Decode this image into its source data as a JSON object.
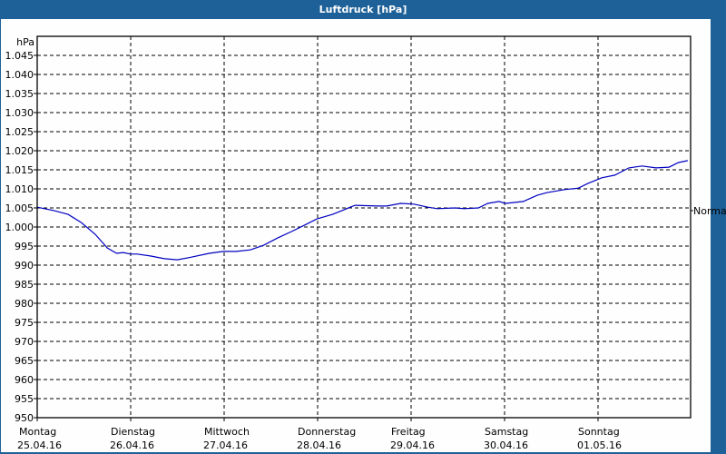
{
  "window": {
    "title": "Luftdruck [hPa]"
  },
  "colors": {
    "titlebar": "#1e6198",
    "background": "#fdfefd",
    "line": "#0000c0",
    "grid": "#000000"
  },
  "chart_data": {
    "type": "line",
    "title": "Luftdruck [hPa]",
    "xlabel": "",
    "ylabel": "hPa",
    "ylim": [
      950,
      1045
    ],
    "yticks": [
      "950",
      "955",
      "960",
      "965",
      "970",
      "975",
      "980",
      "985",
      "990",
      "995",
      "1.000",
      "1.005",
      "1.010",
      "1.015",
      "1.020",
      "1.025",
      "1.030",
      "1.035",
      "1.040",
      "1.045"
    ],
    "ytick_values": [
      950,
      955,
      960,
      965,
      970,
      975,
      980,
      985,
      990,
      995,
      1000,
      1005,
      1010,
      1015,
      1020,
      1025,
      1030,
      1035,
      1040,
      1045
    ],
    "categories": [
      {
        "day": "Montag",
        "date": "25.04.16"
      },
      {
        "day": "Dienstag",
        "date": "26.04.16"
      },
      {
        "day": "Mittwoch",
        "date": "27.04.16"
      },
      {
        "day": "Donnerstag",
        "date": "28.04.16"
      },
      {
        "day": "Freitag",
        "date": "29.04.16"
      },
      {
        "day": "Samstag",
        "date": "30.04.16"
      },
      {
        "day": "Sonntag",
        "date": "01.05.16"
      }
    ],
    "reference_line": {
      "label": "Normal",
      "value": 1004.3
    },
    "grid": true,
    "series": [
      {
        "name": "Luftdruck",
        "x_days": [
          0.0,
          0.18,
          0.33,
          0.47,
          0.62,
          0.75,
          0.85,
          0.92,
          1.0,
          1.07,
          1.21,
          1.36,
          1.5,
          1.65,
          1.84,
          1.99,
          2.13,
          2.28,
          2.42,
          2.57,
          2.72,
          2.86,
          2.99,
          3.16,
          3.26,
          3.4,
          3.64,
          3.74,
          3.89,
          4.03,
          4.18,
          4.28,
          4.47,
          4.57,
          4.72,
          4.82,
          4.94,
          5.01,
          5.2,
          5.35,
          5.45,
          5.64,
          5.79,
          5.89,
          6.04,
          6.18,
          6.33,
          6.47,
          6.62,
          6.76,
          6.86,
          6.96
        ],
        "values": [
          1005.2,
          1004.3,
          1003.3,
          1001.2,
          998.1,
          994.5,
          993.1,
          993.3,
          992.9,
          992.9,
          992.4,
          991.7,
          991.4,
          992.1,
          993.1,
          993.6,
          993.6,
          994.0,
          995.2,
          997.1,
          998.8,
          1000.5,
          1002.1,
          1003.3,
          1004.3,
          1005.7,
          1005.5,
          1005.5,
          1006.2,
          1006.0,
          1005.2,
          1004.8,
          1005.0,
          1004.8,
          1005.0,
          1006.2,
          1006.7,
          1006.2,
          1006.7,
          1008.3,
          1009.0,
          1009.8,
          1010.2,
          1011.4,
          1012.9,
          1013.6,
          1015.5,
          1016.0,
          1015.5,
          1015.7,
          1016.9,
          1017.4
        ]
      }
    ]
  }
}
